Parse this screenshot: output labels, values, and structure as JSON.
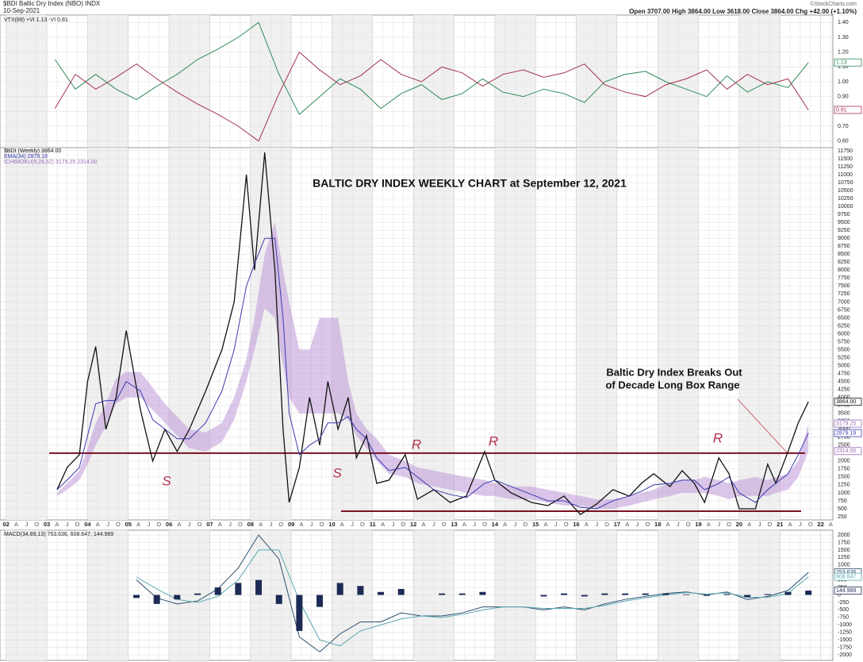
{
  "header": {
    "symbol": "$BDI Baltic Dry Index (NBO) INDX",
    "date": "10-Sep-2021",
    "quote": "Open 3707.00 High 3864.00 Low 3618.00 Close 3864.00 Chg +42.00 (+1.10%)",
    "source": "©StockCharts.com"
  },
  "chart_data": [
    {
      "type": "line",
      "legend": "VTX(89) +VI 1.13 -VI 0.81",
      "xlim": [
        2001.85,
        2022.3
      ],
      "ylim": [
        0.55,
        1.45
      ],
      "yticks": [
        {
          "value": 0.6,
          "label": "0.60"
        },
        {
          "value": 0.7,
          "label": "0.70"
        },
        {
          "value": 0.8,
          "label": "0.80"
        },
        {
          "value": 0.9,
          "label": "0.90"
        },
        {
          "value": 1.0,
          "label": "1.00"
        },
        {
          "value": 1.1,
          "label": "1.10"
        },
        {
          "value": 1.2,
          "label": "1.20"
        },
        {
          "value": 1.3,
          "label": "1.30"
        },
        {
          "value": 1.4,
          "label": "1.40"
        }
      ],
      "x": [
        2003.2,
        2003.7,
        2004.2,
        2004.7,
        2005.2,
        2005.7,
        2006.2,
        2006.7,
        2007.2,
        2007.7,
        2008.2,
        2008.7,
        2009.2,
        2009.7,
        2010.2,
        2010.7,
        2011.2,
        2011.7,
        2012.2,
        2012.7,
        2013.2,
        2013.7,
        2014.2,
        2014.7,
        2015.2,
        2015.7,
        2016.2,
        2016.7,
        2017.2,
        2017.7,
        2018.2,
        2018.7,
        2019.2,
        2019.7,
        2020.2,
        2020.7,
        2021.2,
        2021.7
      ],
      "series": [
        {
          "color": "#2e8b57",
          "tag": "1.13",
          "values": [
            1.15,
            0.95,
            1.05,
            0.95,
            0.88,
            0.97,
            1.05,
            1.15,
            1.22,
            1.3,
            1.4,
            1.05,
            0.78,
            0.9,
            1.02,
            0.95,
            0.82,
            0.92,
            0.98,
            0.88,
            0.92,
            1.02,
            0.93,
            0.9,
            0.95,
            0.92,
            0.86,
            1.0,
            1.05,
            1.07,
            1.0,
            0.95,
            0.9,
            1.04,
            0.93,
            1.0,
            0.96,
            1.13
          ]
        },
        {
          "color": "#a3324e",
          "tag": "0.81",
          "values": [
            0.82,
            1.05,
            0.95,
            1.03,
            1.12,
            1.02,
            0.93,
            0.85,
            0.78,
            0.7,
            0.6,
            0.92,
            1.2,
            1.08,
            0.98,
            1.04,
            1.15,
            1.05,
            1.0,
            1.1,
            1.06,
            0.97,
            1.05,
            1.08,
            1.03,
            1.06,
            1.12,
            0.98,
            0.93,
            0.9,
            0.98,
            1.02,
            1.08,
            0.95,
            1.05,
            0.98,
            1.02,
            0.81
          ]
        }
      ]
    },
    {
      "type": "line",
      "title": "BALTIC DRY INDEX WEEKLY CHART at September 12, 2021",
      "annotation": [
        "Baltic Dry Index Breaks Out",
        "of Decade Long Box Range"
      ],
      "labels": [
        "S",
        "S",
        "R",
        "R",
        "R"
      ],
      "legend": [
        "$BDI (Weekly) 3864.00",
        "EMA(34) 2879.19",
        "ICHIMOKU(9,26,52) 3179.25 2314.00"
      ],
      "xlim": [
        2001.85,
        2022.3
      ],
      "ylim": [
        150,
        11850
      ],
      "yticks": [
        250,
        500,
        750,
        1000,
        1250,
        1500,
        1750,
        2000,
        2250,
        2500,
        2750,
        3000,
        3250,
        3500,
        3750,
        4000,
        4250,
        4500,
        4750,
        5000,
        5250,
        5500,
        5750,
        6000,
        6250,
        6500,
        6750,
        7000,
        7250,
        7500,
        7750,
        8000,
        8250,
        8500,
        8750,
        9000,
        9250,
        9500,
        9750,
        10000,
        10250,
        10500,
        10750,
        11000,
        11250,
        11500,
        11750
      ],
      "xticks": [
        {
          "value": 2002,
          "label": "02"
        },
        {
          "value": 2002.25,
          "label": "A"
        },
        {
          "value": 2002.5,
          "label": "J"
        },
        {
          "value": 2002.75,
          "label": "O"
        },
        {
          "value": 2003,
          "label": "03"
        },
        {
          "value": 2003.25,
          "label": "A"
        },
        {
          "value": 2003.5,
          "label": "J"
        },
        {
          "value": 2003.75,
          "label": "O"
        },
        {
          "value": 2004,
          "label": "04"
        },
        {
          "value": 2004.25,
          "label": "A"
        },
        {
          "value": 2004.5,
          "label": "J"
        },
        {
          "value": 2004.75,
          "label": "O"
        },
        {
          "value": 2005,
          "label": "05"
        },
        {
          "value": 2005.25,
          "label": "A"
        },
        {
          "value": 2005.5,
          "label": "J"
        },
        {
          "value": 2005.75,
          "label": "O"
        },
        {
          "value": 2006,
          "label": "06"
        },
        {
          "value": 2006.25,
          "label": "A"
        },
        {
          "value": 2006.5,
          "label": "J"
        },
        {
          "value": 2006.75,
          "label": "O"
        },
        {
          "value": 2007,
          "label": "07"
        },
        {
          "value": 2007.25,
          "label": "A"
        },
        {
          "value": 2007.5,
          "label": "J"
        },
        {
          "value": 2007.75,
          "label": "O"
        },
        {
          "value": 2008,
          "label": "08"
        },
        {
          "value": 2008.25,
          "label": "A"
        },
        {
          "value": 2008.5,
          "label": "J"
        },
        {
          "value": 2008.75,
          "label": "O"
        },
        {
          "value": 2009,
          "label": "09"
        },
        {
          "value": 2009.25,
          "label": "A"
        },
        {
          "value": 2009.5,
          "label": "J"
        },
        {
          "value": 2009.75,
          "label": "O"
        },
        {
          "value": 2010,
          "label": "10"
        },
        {
          "value": 2010.25,
          "label": "A"
        },
        {
          "value": 2010.5,
          "label": "J"
        },
        {
          "value": 2010.75,
          "label": "O"
        },
        {
          "value": 2011,
          "label": "11"
        },
        {
          "value": 2011.25,
          "label": "A"
        },
        {
          "value": 2011.5,
          "label": "J"
        },
        {
          "value": 2011.75,
          "label": "O"
        },
        {
          "value": 2012,
          "label": "12"
        },
        {
          "value": 2012.25,
          "label": "A"
        },
        {
          "value": 2012.5,
          "label": "J"
        },
        {
          "value": 2012.75,
          "label": "O"
        },
        {
          "value": 2013,
          "label": "13"
        },
        {
          "value": 2013.25,
          "label": "A"
        },
        {
          "value": 2013.5,
          "label": "J"
        },
        {
          "value": 2013.75,
          "label": "O"
        },
        {
          "value": 2014,
          "label": "14"
        },
        {
          "value": 2014.25,
          "label": "A"
        },
        {
          "value": 2014.5,
          "label": "J"
        },
        {
          "value": 2014.75,
          "label": "O"
        },
        {
          "value": 2015,
          "label": "15"
        },
        {
          "value": 2015.25,
          "label": "A"
        },
        {
          "value": 2015.5,
          "label": "J"
        },
        {
          "value": 2015.75,
          "label": "O"
        },
        {
          "value": 2016,
          "label": "16"
        },
        {
          "value": 2016.25,
          "label": "A"
        },
        {
          "value": 2016.5,
          "label": "J"
        },
        {
          "value": 2016.75,
          "label": "O"
        },
        {
          "value": 2017,
          "label": "17"
        },
        {
          "value": 2017.25,
          "label": "A"
        },
        {
          "value": 2017.5,
          "label": "J"
        },
        {
          "value": 2017.75,
          "label": "O"
        },
        {
          "value": 2018,
          "label": "18"
        },
        {
          "value": 2018.25,
          "label": "A"
        },
        {
          "value": 2018.5,
          "label": "J"
        },
        {
          "value": 2018.75,
          "label": "O"
        },
        {
          "value": 2019,
          "label": "19"
        },
        {
          "value": 2019.25,
          "label": "A"
        },
        {
          "value": 2019.5,
          "label": "J"
        },
        {
          "value": 2019.75,
          "label": "O"
        },
        {
          "value": 2020,
          "label": "20"
        },
        {
          "value": 2020.25,
          "label": "A"
        },
        {
          "value": 2020.5,
          "label": "J"
        },
        {
          "value": 2020.75,
          "label": "O"
        },
        {
          "value": 2021,
          "label": "21"
        },
        {
          "value": 2021.25,
          "label": "A"
        },
        {
          "value": 2021.5,
          "label": "J"
        },
        {
          "value": 2021.75,
          "label": "O"
        },
        {
          "value": 2022,
          "label": "22"
        },
        {
          "value": 2022.25,
          "label": "A"
        }
      ],
      "levels": [
        2250,
        425
      ],
      "level_color": "#7a1020",
      "x": [
        2003.25,
        2003.5,
        2003.8,
        2004.0,
        2004.2,
        2004.45,
        2004.7,
        2004.95,
        2005.3,
        2005.6,
        2005.9,
        2006.2,
        2006.5,
        2006.9,
        2007.3,
        2007.6,
        2007.9,
        2008.1,
        2008.35,
        2008.6,
        2008.8,
        2008.95,
        2009.2,
        2009.45,
        2009.7,
        2009.9,
        2010.15,
        2010.4,
        2010.6,
        2010.85,
        2011.1,
        2011.4,
        2011.8,
        2012.1,
        2012.5,
        2012.9,
        2013.3,
        2013.75,
        2014.0,
        2014.4,
        2014.9,
        2015.3,
        2015.7,
        2016.1,
        2016.5,
        2016.9,
        2017.3,
        2017.6,
        2017.9,
        2018.3,
        2018.6,
        2018.9,
        2019.15,
        2019.5,
        2019.75,
        2020.0,
        2020.4,
        2020.7,
        2020.9,
        2021.2,
        2021.45,
        2021.7
      ],
      "series": [
        {
          "color": "#111111",
          "tag": "3864.00",
          "values": [
            1100,
            1800,
            2200,
            4500,
            5600,
            3000,
            4000,
            6100,
            3600,
            2000,
            3000,
            2300,
            3000,
            4200,
            5500,
            7000,
            11000,
            8000,
            11700,
            8000,
            3000,
            700,
            1800,
            4000,
            2500,
            4500,
            3000,
            4000,
            2100,
            2800,
            1300,
            1400,
            2200,
            800,
            1100,
            700,
            900,
            2300,
            1400,
            1000,
            700,
            600,
            900,
            320,
            650,
            1100,
            900,
            1300,
            1600,
            1200,
            1700,
            1300,
            700,
            2100,
            1600,
            500,
            500,
            1900,
            1300,
            2300,
            3200,
            3864
          ]
        },
        {
          "color": "#3a3ab0",
          "tag": "2879.19",
          "values": [
            1100,
            1400,
            1800,
            2800,
            3800,
            3900,
            3900,
            4500,
            4200,
            3300,
            3000,
            2700,
            2700,
            3200,
            4200,
            5500,
            7500,
            8200,
            9000,
            9000,
            6500,
            3500,
            2200,
            2500,
            2700,
            3200,
            3200,
            3400,
            3000,
            2700,
            2100,
            1700,
            1800,
            1500,
            1100,
            950,
            850,
            1300,
            1400,
            1200,
            950,
            750,
            750,
            550,
            500,
            750,
            900,
            1050,
            1250,
            1300,
            1400,
            1400,
            1100,
            1300,
            1500,
            1000,
            700,
            1100,
            1300,
            1600,
            2200,
            2879.19
          ]
        }
      ],
      "cloud": {
        "color": "#b98fd6",
        "upper_tag": "3179.25",
        "lower_tag": "2314.00",
        "upper": [
          1000,
          1300,
          1700,
          2400,
          3200,
          3800,
          4600,
          4800,
          4800,
          4300,
          3800,
          3400,
          3000,
          2900,
          3200,
          4000,
          5200,
          6500,
          8500,
          9500,
          8000,
          7000,
          5500,
          5500,
          6500,
          6500,
          6500,
          4500,
          3500,
          3000,
          2700,
          2200,
          2000,
          1800,
          1700,
          1600,
          1500,
          1400,
          1300,
          1200,
          1200,
          1100,
          1000,
          900,
          800,
          800,
          900,
          1000,
          1100,
          1300,
          1400,
          1400,
          1500,
          1400,
          1300,
          1400,
          1500,
          1400,
          1500,
          1600,
          2000,
          3179.25
        ],
        "lower": [
          900,
          1100,
          1400,
          1900,
          2500,
          3100,
          3800,
          4000,
          4000,
          3600,
          3200,
          2800,
          2400,
          2300,
          2600,
          3300,
          4500,
          5500,
          6800,
          6500,
          5000,
          4000,
          3500,
          3500,
          3500,
          3500,
          3500,
          3300,
          2800,
          2400,
          2000,
          1600,
          1500,
          1300,
          1200,
          1100,
          1000,
          900,
          900,
          800,
          800,
          700,
          600,
          600,
          500,
          500,
          600,
          700,
          800,
          900,
          1000,
          1000,
          1000,
          900,
          800,
          900,
          900,
          900,
          1000,
          1100,
          1500,
          2314
        ]
      }
    },
    {
      "type": "line",
      "legend": "MACD(34,89,13) 753.636, 608.647, 144.989",
      "xlim": [
        2001.85,
        2022.3
      ],
      "ylim": [
        -2185,
        2160
      ],
      "yticks": [
        -2000,
        -1750,
        -1500,
        -1250,
        -1000,
        -750,
        -500,
        -250,
        0,
        250,
        500,
        750,
        1000,
        1250,
        1500,
        1750,
        2000
      ],
      "x": [
        2005.2,
        2005.7,
        2006.2,
        2006.7,
        2007.2,
        2007.7,
        2008.2,
        2008.7,
        2009.2,
        2009.7,
        2010.2,
        2010.7,
        2011.2,
        2011.7,
        2012.2,
        2012.7,
        2013.2,
        2013.7,
        2014.2,
        2014.7,
        2015.2,
        2015.7,
        2016.2,
        2016.7,
        2017.2,
        2017.7,
        2018.2,
        2018.7,
        2019.2,
        2019.7,
        2020.2,
        2020.7,
        2021.2,
        2021.7
      ],
      "series": [
        {
          "color": "#2b4f6f",
          "tag": "753.636",
          "values": [
            500,
            -100,
            -300,
            -200,
            200,
            900,
            2000,
            1200,
            -1400,
            -1900,
            -1300,
            -900,
            -900,
            -600,
            -700,
            -700,
            -600,
            -400,
            -400,
            -400,
            -500,
            -400,
            -500,
            -300,
            -150,
            -50,
            50,
            100,
            0,
            100,
            -150,
            -50,
            150,
            753.636
          ]
        },
        {
          "color": "#5aa8b0",
          "tag": "608.647",
          "values": [
            600,
            200,
            -150,
            -250,
            -50,
            500,
            1500,
            1500,
            -200,
            -1500,
            -1700,
            -1200,
            -1000,
            -800,
            -700,
            -750,
            -650,
            -500,
            -400,
            -400,
            -450,
            -450,
            -450,
            -350,
            -200,
            -100,
            0,
            80,
            30,
            70,
            -80,
            -80,
            50,
            608.647
          ]
        },
        {
          "type": "bar",
          "color": "#1c2a55",
          "tag": "144.989",
          "values": [
            -100,
            -300,
            -150,
            50,
            250,
            400,
            500,
            -300,
            -1200,
            -400,
            400,
            300,
            100,
            200,
            0,
            50,
            50,
            100,
            0,
            0,
            -50,
            50,
            -50,
            50,
            50,
            50,
            50,
            20,
            -30,
            30,
            -70,
            30,
            100,
            144.989
          ]
        }
      ]
    }
  ]
}
